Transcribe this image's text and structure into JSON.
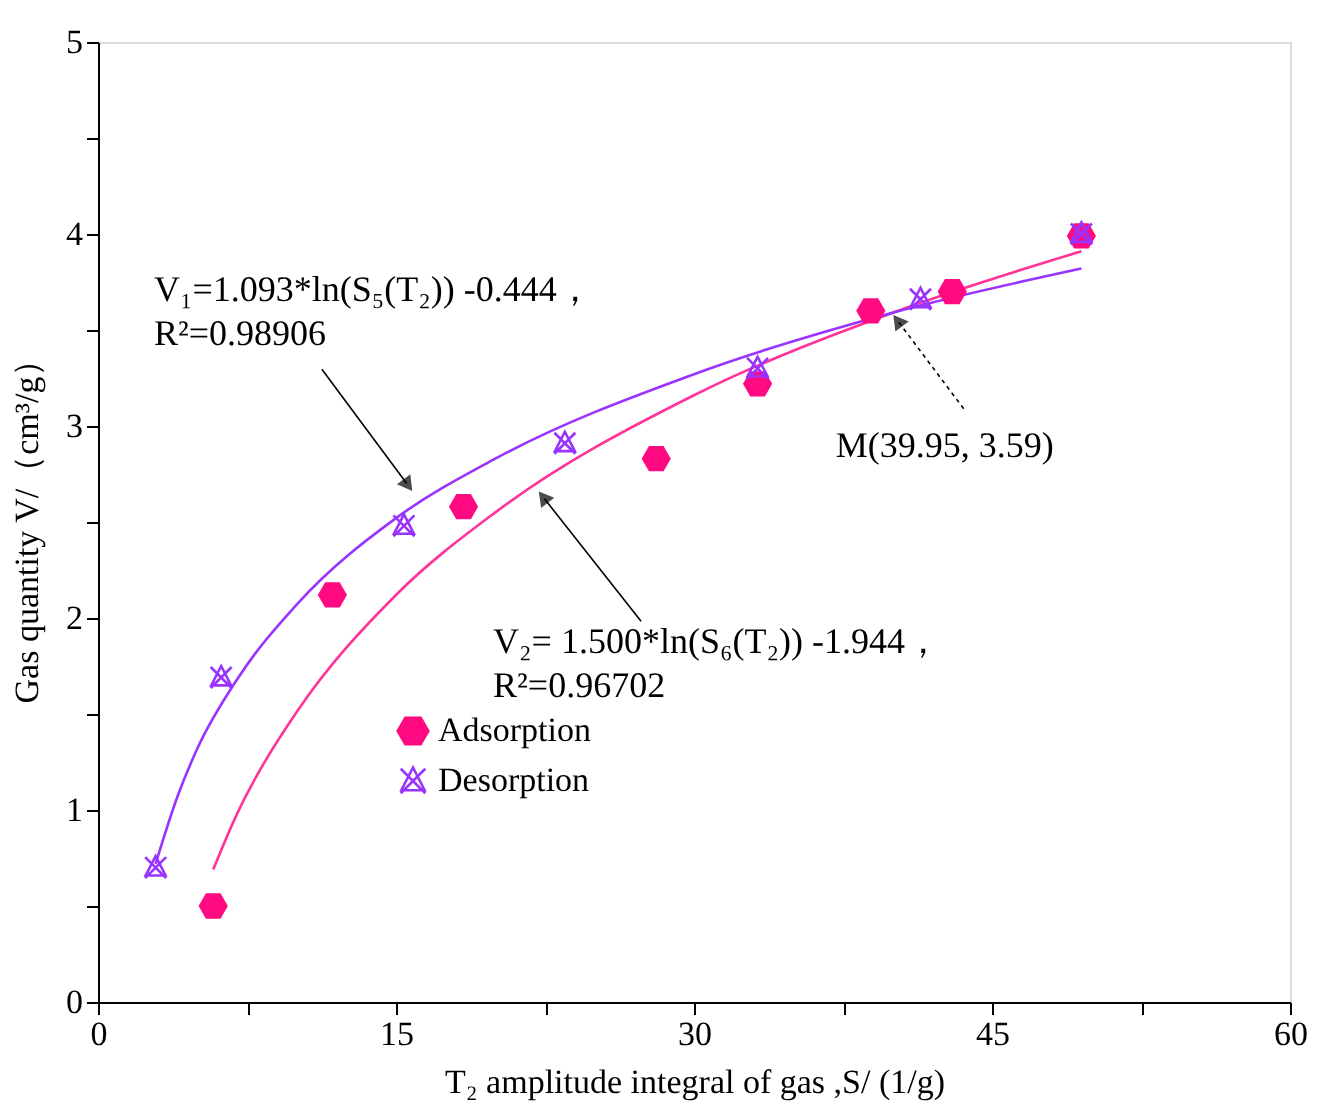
{
  "chart_data": {
    "type": "scatter",
    "xlabel": "T₂ amplitude integral of gas ,S/ (1/g)",
    "ylabel": "Gas quantity V/（cm³/g）",
    "xlim": [
      0,
      60
    ],
    "xticks": [
      0,
      {
        "value": 7.5,
        "label": null
      },
      15,
      {
        "value": 22.5,
        "label": null
      },
      30,
      {
        "value": 37.5,
        "label": null
      },
      45,
      {
        "value": 52.5,
        "label": null
      },
      60
    ],
    "ylim": [
      0,
      5
    ],
    "yticks": [
      0,
      {
        "value": 0.5,
        "label": null
      },
      1,
      {
        "value": 1.5,
        "label": null
      },
      2,
      {
        "value": 2.5,
        "label": null
      },
      3,
      {
        "value": 3.5,
        "label": null
      },
      4,
      {
        "value": 4.5,
        "label": null
      },
      5
    ],
    "grid": false,
    "legend": "bottom left",
    "series": [
      {
        "name": "Adsorption",
        "marker": "circle",
        "color": "#ff0a80",
        "x": [
          5.8,
          11.8,
          18.4,
          28.1,
          33.2,
          38.9,
          43.0,
          49.5
        ],
        "values": [
          0.5,
          2.12,
          2.58,
          2.83,
          3.22,
          3.6,
          3.7,
          3.99
        ]
      },
      {
        "name": "Desorption",
        "marker": "cross",
        "color": "#9933ff",
        "x": [
          2.9,
          6.2,
          15.4,
          23.5,
          33.2,
          41.4,
          49.5
        ],
        "values": [
          0.7,
          1.69,
          2.48,
          2.91,
          3.3,
          3.66,
          4.0
        ]
      },
      {
        "type": "line",
        "marker": "none",
        "color": "#ff3399",
        "x": [
          5.8,
          7,
          8,
          10,
          15,
          20,
          30,
          40,
          49.5
        ],
        "values": [
          0.69,
          0.98,
          1.18,
          1.51,
          2.12,
          2.55,
          3.16,
          3.59,
          3.91
        ]
      },
      {
        "type": "line",
        "marker": "none",
        "color": "#9933ff",
        "x": [
          2.9,
          4,
          5,
          7,
          10,
          15,
          20,
          30,
          40,
          49.5
        ],
        "values": [
          0.72,
          1.07,
          1.32,
          1.68,
          2.07,
          2.52,
          2.83,
          3.27,
          3.59,
          3.82
        ]
      }
    ],
    "annotations": [
      {
        "text": "V₁=1.093*ln(S₅(T₂)) -0.444，\nR²=0.98906",
        "x": 15.9,
        "y": 2.65
      },
      {
        "text": "V₂= 1.500*ln(S₆(T₂)) -1.944，\nR²=0.96702",
        "x": 22.1,
        "y": 2.67
      },
      {
        "text": "M(39.95, 3.59)",
        "x": 39.95,
        "y": 3.59
      }
    ]
  }
}
